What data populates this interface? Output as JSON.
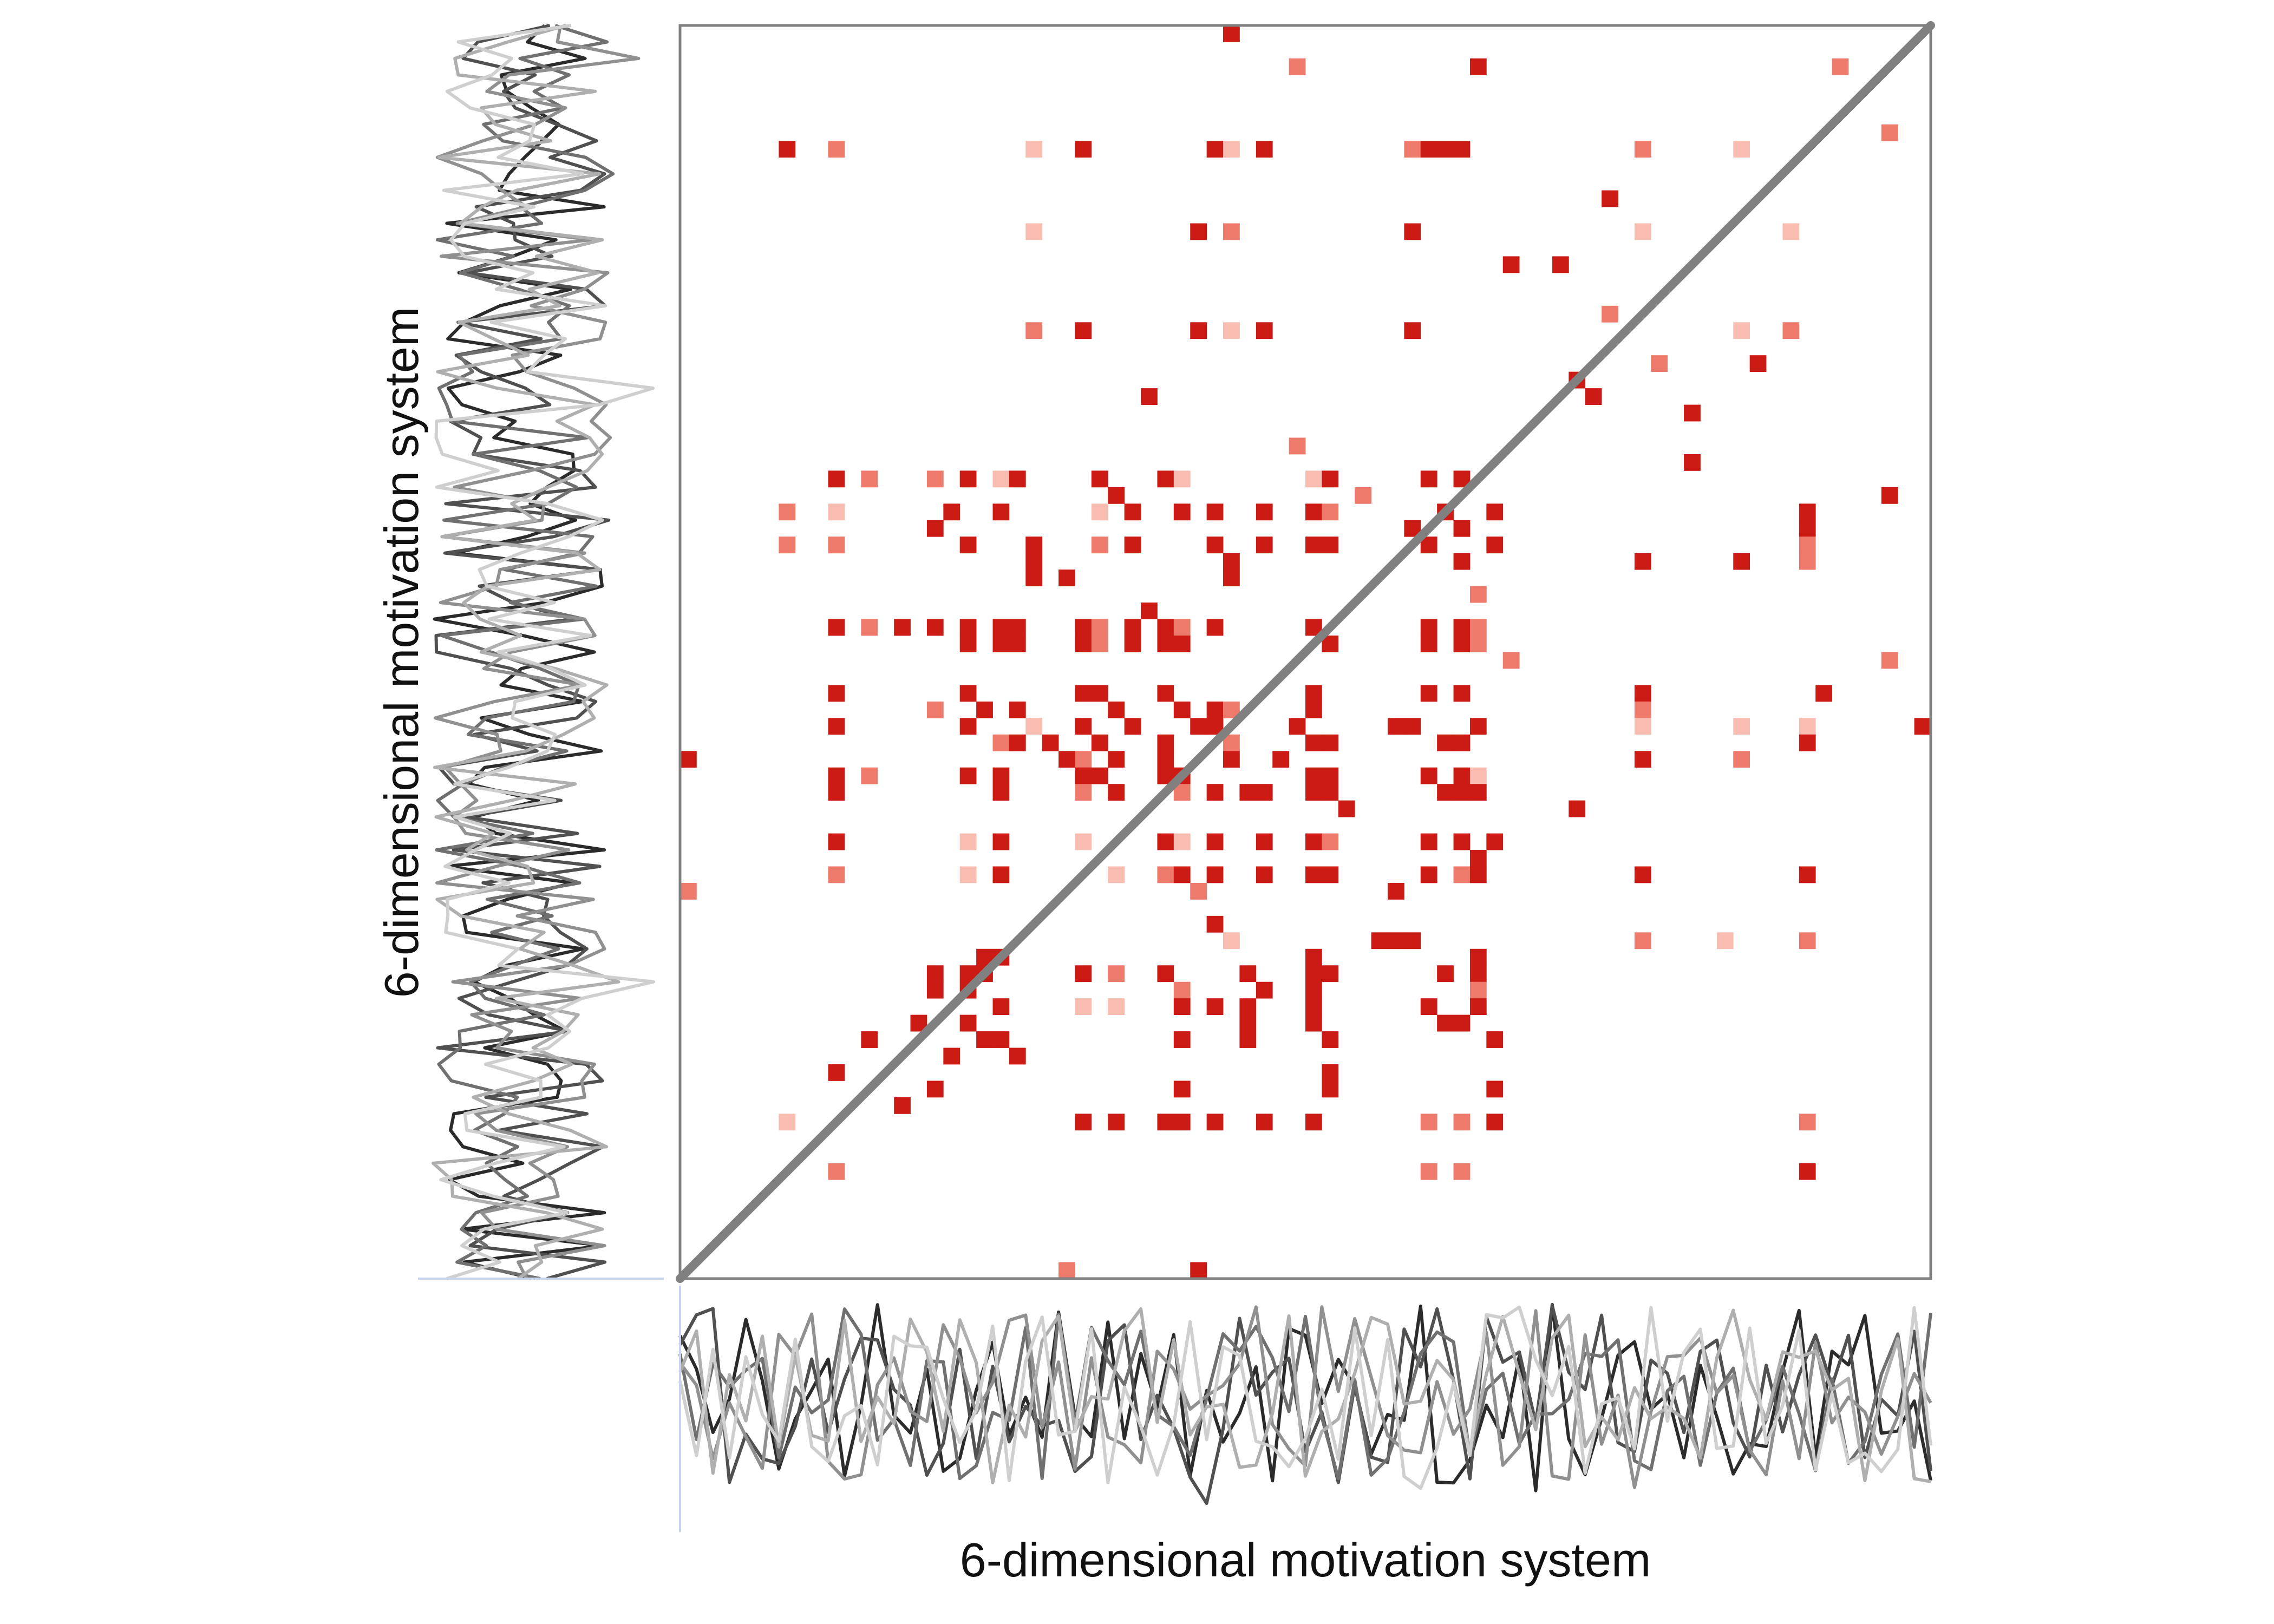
{
  "chart_data": {
    "type": "heatmap",
    "title": "",
    "xlabel": "6-dimensional motivation system",
    "ylabel": "6-dimensional motivation system",
    "grid": false,
    "legend": "none",
    "matrix_size": 76,
    "diagonal": "y = x reference line",
    "colors": {
      "dark": "#cc1a14",
      "medium": "#e0453a",
      "light": "#ee7a6c",
      "faint": "#f8bcb0",
      "diagonal": "#808080",
      "frame": "#808080"
    },
    "cells": [
      [
        33,
        0,
        "dark"
      ],
      [
        37,
        2,
        "light"
      ],
      [
        48,
        2,
        "dark"
      ],
      [
        70,
        2,
        "light"
      ],
      [
        6,
        7,
        "dark"
      ],
      [
        9,
        7,
        "light"
      ],
      [
        21,
        7,
        "faint"
      ],
      [
        24,
        7,
        "dark"
      ],
      [
        32,
        7,
        "dark"
      ],
      [
        33,
        7,
        "faint"
      ],
      [
        35,
        7,
        "dark"
      ],
      [
        44,
        7,
        "light"
      ],
      [
        45,
        7,
        "dark"
      ],
      [
        46,
        7,
        "dark"
      ],
      [
        47,
        7,
        "dark"
      ],
      [
        58,
        7,
        "light"
      ],
      [
        64,
        7,
        "faint"
      ],
      [
        73,
        6,
        "light"
      ],
      [
        56,
        10,
        "dark"
      ],
      [
        21,
        12,
        "faint"
      ],
      [
        31,
        12,
        "dark"
      ],
      [
        33,
        12,
        "light"
      ],
      [
        44,
        12,
        "dark"
      ],
      [
        58,
        12,
        "faint"
      ],
      [
        67,
        12,
        "faint"
      ],
      [
        50,
        14,
        "dark"
      ],
      [
        53,
        14,
        "dark"
      ],
      [
        56,
        17,
        "light"
      ],
      [
        21,
        18,
        "light"
      ],
      [
        24,
        18,
        "dark"
      ],
      [
        31,
        18,
        "dark"
      ],
      [
        33,
        18,
        "faint"
      ],
      [
        35,
        18,
        "dark"
      ],
      [
        44,
        18,
        "dark"
      ],
      [
        64,
        18,
        "faint"
      ],
      [
        67,
        18,
        "light"
      ],
      [
        59,
        20,
        "light"
      ],
      [
        65,
        20,
        "dark"
      ],
      [
        54,
        21,
        "dark"
      ],
      [
        55,
        22,
        "dark"
      ],
      [
        28,
        22,
        "dark"
      ],
      [
        61,
        23,
        "dark"
      ],
      [
        37,
        25,
        "light"
      ],
      [
        61,
        26,
        "dark"
      ],
      [
        9,
        27,
        "dark"
      ],
      [
        11,
        27,
        "light"
      ],
      [
        15,
        27,
        "light"
      ],
      [
        17,
        27,
        "dark"
      ],
      [
        19,
        27,
        "faint"
      ],
      [
        20,
        27,
        "dark"
      ],
      [
        25,
        27,
        "dark"
      ],
      [
        29,
        27,
        "dark"
      ],
      [
        30,
        27,
        "faint"
      ],
      [
        38,
        27,
        "faint"
      ],
      [
        39,
        27,
        "dark"
      ],
      [
        45,
        27,
        "dark"
      ],
      [
        47,
        27,
        "dark"
      ],
      [
        26,
        28,
        "dark"
      ],
      [
        41,
        28,
        "light"
      ],
      [
        73,
        28,
        "dark"
      ],
      [
        6,
        29,
        "light"
      ],
      [
        9,
        29,
        "faint"
      ],
      [
        16,
        29,
        "dark"
      ],
      [
        19,
        29,
        "dark"
      ],
      [
        25,
        29,
        "faint"
      ],
      [
        27,
        29,
        "dark"
      ],
      [
        30,
        29,
        "dark"
      ],
      [
        32,
        29,
        "dark"
      ],
      [
        35,
        29,
        "dark"
      ],
      [
        38,
        29,
        "dark"
      ],
      [
        39,
        29,
        "light"
      ],
      [
        46,
        29,
        "dark"
      ],
      [
        49,
        29,
        "dark"
      ],
      [
        68,
        29,
        "dark"
      ],
      [
        15,
        30,
        "dark"
      ],
      [
        44,
        30,
        "dark"
      ],
      [
        47,
        30,
        "dark"
      ],
      [
        68,
        30,
        "dark"
      ],
      [
        6,
        31,
        "light"
      ],
      [
        9,
        31,
        "light"
      ],
      [
        17,
        31,
        "dark"
      ],
      [
        21,
        31,
        "dark"
      ],
      [
        25,
        31,
        "light"
      ],
      [
        27,
        31,
        "dark"
      ],
      [
        32,
        31,
        "dark"
      ],
      [
        35,
        31,
        "dark"
      ],
      [
        38,
        31,
        "dark"
      ],
      [
        39,
        31,
        "dark"
      ],
      [
        45,
        31,
        "dark"
      ],
      [
        49,
        31,
        "dark"
      ],
      [
        68,
        31,
        "light"
      ],
      [
        21,
        32,
        "dark"
      ],
      [
        33,
        32,
        "dark"
      ],
      [
        47,
        32,
        "dark"
      ],
      [
        58,
        32,
        "dark"
      ],
      [
        64,
        32,
        "dark"
      ],
      [
        68,
        32,
        "light"
      ],
      [
        21,
        33,
        "dark"
      ],
      [
        23,
        33,
        "dark"
      ],
      [
        33,
        33,
        "dark"
      ],
      [
        48,
        34,
        "light"
      ],
      [
        28,
        35,
        "dark"
      ],
      [
        9,
        36,
        "dark"
      ],
      [
        11,
        36,
        "light"
      ],
      [
        13,
        36,
        "dark"
      ],
      [
        15,
        36,
        "dark"
      ],
      [
        17,
        36,
        "dark"
      ],
      [
        19,
        36,
        "dark"
      ],
      [
        20,
        36,
        "dark"
      ],
      [
        24,
        36,
        "dark"
      ],
      [
        25,
        36,
        "light"
      ],
      [
        27,
        36,
        "dark"
      ],
      [
        29,
        36,
        "dark"
      ],
      [
        30,
        36,
        "light"
      ],
      [
        32,
        36,
        "dark"
      ],
      [
        38,
        36,
        "dark"
      ],
      [
        45,
        36,
        "dark"
      ],
      [
        47,
        36,
        "dark"
      ],
      [
        48,
        36,
        "light"
      ],
      [
        17,
        37,
        "dark"
      ],
      [
        19,
        37,
        "dark"
      ],
      [
        20,
        37,
        "dark"
      ],
      [
        24,
        37,
        "dark"
      ],
      [
        25,
        37,
        "light"
      ],
      [
        27,
        37,
        "dark"
      ],
      [
        29,
        37,
        "dark"
      ],
      [
        30,
        37,
        "dark"
      ],
      [
        39,
        37,
        "dark"
      ],
      [
        45,
        37,
        "dark"
      ],
      [
        47,
        37,
        "dark"
      ],
      [
        48,
        37,
        "light"
      ],
      [
        50,
        38,
        "light"
      ],
      [
        73,
        38,
        "light"
      ],
      [
        9,
        40,
        "dark"
      ],
      [
        17,
        40,
        "dark"
      ],
      [
        24,
        40,
        "dark"
      ],
      [
        25,
        40,
        "dark"
      ],
      [
        29,
        40,
        "dark"
      ],
      [
        38,
        40,
        "dark"
      ],
      [
        45,
        40,
        "dark"
      ],
      [
        47,
        40,
        "dark"
      ],
      [
        58,
        40,
        "dark"
      ],
      [
        69,
        40,
        "dark"
      ],
      [
        15,
        41,
        "light"
      ],
      [
        18,
        41,
        "dark"
      ],
      [
        20,
        41,
        "dark"
      ],
      [
        26,
        41,
        "dark"
      ],
      [
        30,
        41,
        "dark"
      ],
      [
        32,
        41,
        "dark"
      ],
      [
        33,
        41,
        "light"
      ],
      [
        38,
        41,
        "dark"
      ],
      [
        58,
        41,
        "light"
      ],
      [
        9,
        42,
        "dark"
      ],
      [
        17,
        42,
        "dark"
      ],
      [
        21,
        42,
        "faint"
      ],
      [
        24,
        42,
        "dark"
      ],
      [
        27,
        42,
        "dark"
      ],
      [
        31,
        42,
        "dark"
      ],
      [
        32,
        42,
        "dark"
      ],
      [
        37,
        42,
        "dark"
      ],
      [
        43,
        42,
        "dark"
      ],
      [
        44,
        42,
        "dark"
      ],
      [
        48,
        42,
        "dark"
      ],
      [
        58,
        42,
        "faint"
      ],
      [
        64,
        42,
        "faint"
      ],
      [
        68,
        42,
        "faint"
      ],
      [
        75,
        42,
        "dark"
      ],
      [
        19,
        43,
        "light"
      ],
      [
        20,
        43,
        "dark"
      ],
      [
        22,
        43,
        "dark"
      ],
      [
        25,
        43,
        "dark"
      ],
      [
        29,
        43,
        "dark"
      ],
      [
        33,
        43,
        "light"
      ],
      [
        38,
        43,
        "dark"
      ],
      [
        39,
        43,
        "dark"
      ],
      [
        46,
        43,
        "dark"
      ],
      [
        47,
        43,
        "dark"
      ],
      [
        68,
        43,
        "dark"
      ],
      [
        0,
        44,
        "dark"
      ],
      [
        23,
        44,
        "dark"
      ],
      [
        24,
        44,
        "light"
      ],
      [
        26,
        44,
        "dark"
      ],
      [
        29,
        44,
        "dark"
      ],
      [
        33,
        44,
        "dark"
      ],
      [
        36,
        44,
        "dark"
      ],
      [
        58,
        44,
        "dark"
      ],
      [
        64,
        44,
        "light"
      ],
      [
        9,
        45,
        "dark"
      ],
      [
        11,
        45,
        "light"
      ],
      [
        17,
        45,
        "dark"
      ],
      [
        19,
        45,
        "dark"
      ],
      [
        24,
        45,
        "dark"
      ],
      [
        25,
        45,
        "dark"
      ],
      [
        29,
        45,
        "dark"
      ],
      [
        30,
        45,
        "dark"
      ],
      [
        38,
        45,
        "dark"
      ],
      [
        39,
        45,
        "dark"
      ],
      [
        45,
        45,
        "dark"
      ],
      [
        47,
        45,
        "dark"
      ],
      [
        48,
        45,
        "faint"
      ],
      [
        9,
        46,
        "dark"
      ],
      [
        19,
        46,
        "dark"
      ],
      [
        24,
        46,
        "light"
      ],
      [
        26,
        46,
        "dark"
      ],
      [
        30,
        46,
        "light"
      ],
      [
        32,
        46,
        "dark"
      ],
      [
        34,
        46,
        "dark"
      ],
      [
        35,
        46,
        "dark"
      ],
      [
        38,
        46,
        "dark"
      ],
      [
        39,
        46,
        "dark"
      ],
      [
        46,
        46,
        "dark"
      ],
      [
        47,
        46,
        "dark"
      ],
      [
        48,
        46,
        "dark"
      ],
      [
        40,
        47,
        "dark"
      ],
      [
        54,
        47,
        "dark"
      ],
      [
        9,
        49,
        "dark"
      ],
      [
        17,
        49,
        "faint"
      ],
      [
        19,
        49,
        "dark"
      ],
      [
        24,
        49,
        "faint"
      ],
      [
        29,
        49,
        "dark"
      ],
      [
        30,
        49,
        "faint"
      ],
      [
        32,
        49,
        "dark"
      ],
      [
        35,
        49,
        "dark"
      ],
      [
        38,
        49,
        "dark"
      ],
      [
        39,
        49,
        "light"
      ],
      [
        45,
        49,
        "dark"
      ],
      [
        47,
        49,
        "dark"
      ],
      [
        49,
        49,
        "dark"
      ],
      [
        48,
        50,
        "dark"
      ],
      [
        9,
        51,
        "light"
      ],
      [
        17,
        51,
        "faint"
      ],
      [
        19,
        51,
        "dark"
      ],
      [
        26,
        51,
        "faint"
      ],
      [
        29,
        51,
        "light"
      ],
      [
        30,
        51,
        "dark"
      ],
      [
        32,
        51,
        "dark"
      ],
      [
        35,
        51,
        "dark"
      ],
      [
        38,
        51,
        "dark"
      ],
      [
        39,
        51,
        "dark"
      ],
      [
        45,
        51,
        "dark"
      ],
      [
        47,
        51,
        "light"
      ],
      [
        48,
        51,
        "dark"
      ],
      [
        58,
        51,
        "dark"
      ],
      [
        68,
        51,
        "dark"
      ],
      [
        0,
        52,
        "light"
      ],
      [
        31,
        52,
        "light"
      ],
      [
        43,
        52,
        "dark"
      ],
      [
        32,
        54,
        "dark"
      ],
      [
        33,
        55,
        "faint"
      ],
      [
        42,
        55,
        "dark"
      ],
      [
        43,
        55,
        "dark"
      ],
      [
        44,
        55,
        "dark"
      ],
      [
        58,
        55,
        "light"
      ],
      [
        63,
        55,
        "faint"
      ],
      [
        68,
        55,
        "light"
      ],
      [
        18,
        56,
        "dark"
      ],
      [
        19,
        56,
        "dark"
      ],
      [
        38,
        56,
        "dark"
      ],
      [
        48,
        56,
        "dark"
      ],
      [
        15,
        57,
        "dark"
      ],
      [
        17,
        57,
        "dark"
      ],
      [
        18,
        57,
        "dark"
      ],
      [
        24,
        57,
        "dark"
      ],
      [
        26,
        57,
        "light"
      ],
      [
        29,
        57,
        "dark"
      ],
      [
        34,
        57,
        "dark"
      ],
      [
        38,
        57,
        "dark"
      ],
      [
        39,
        57,
        "dark"
      ],
      [
        46,
        57,
        "dark"
      ],
      [
        48,
        57,
        "dark"
      ],
      [
        15,
        58,
        "dark"
      ],
      [
        17,
        58,
        "dark"
      ],
      [
        30,
        58,
        "light"
      ],
      [
        35,
        58,
        "dark"
      ],
      [
        38,
        58,
        "dark"
      ],
      [
        48,
        58,
        "light"
      ],
      [
        19,
        59,
        "dark"
      ],
      [
        24,
        59,
        "faint"
      ],
      [
        26,
        59,
        "faint"
      ],
      [
        30,
        59,
        "dark"
      ],
      [
        32,
        59,
        "dark"
      ],
      [
        34,
        59,
        "dark"
      ],
      [
        38,
        59,
        "dark"
      ],
      [
        45,
        59,
        "dark"
      ],
      [
        48,
        59,
        "dark"
      ],
      [
        14,
        60,
        "dark"
      ],
      [
        17,
        60,
        "dark"
      ],
      [
        34,
        60,
        "dark"
      ],
      [
        38,
        60,
        "dark"
      ],
      [
        46,
        60,
        "dark"
      ],
      [
        47,
        60,
        "dark"
      ],
      [
        11,
        61,
        "dark"
      ],
      [
        18,
        61,
        "dark"
      ],
      [
        19,
        61,
        "dark"
      ],
      [
        30,
        61,
        "dark"
      ],
      [
        34,
        61,
        "dark"
      ],
      [
        39,
        61,
        "dark"
      ],
      [
        49,
        61,
        "dark"
      ],
      [
        16,
        62,
        "dark"
      ],
      [
        20,
        62,
        "dark"
      ],
      [
        9,
        63,
        "dark"
      ],
      [
        39,
        63,
        "dark"
      ],
      [
        15,
        64,
        "dark"
      ],
      [
        30,
        64,
        "dark"
      ],
      [
        39,
        64,
        "dark"
      ],
      [
        49,
        64,
        "dark"
      ],
      [
        13,
        65,
        "dark"
      ],
      [
        6,
        66,
        "faint"
      ],
      [
        24,
        66,
        "dark"
      ],
      [
        26,
        66,
        "dark"
      ],
      [
        29,
        66,
        "dark"
      ],
      [
        30,
        66,
        "dark"
      ],
      [
        32,
        66,
        "dark"
      ],
      [
        35,
        66,
        "dark"
      ],
      [
        38,
        66,
        "dark"
      ],
      [
        45,
        66,
        "light"
      ],
      [
        47,
        66,
        "light"
      ],
      [
        49,
        66,
        "dark"
      ],
      [
        68,
        66,
        "light"
      ],
      [
        9,
        69,
        "light"
      ],
      [
        45,
        69,
        "light"
      ],
      [
        47,
        69,
        "light"
      ],
      [
        68,
        69,
        "dark"
      ],
      [
        23,
        75,
        "light"
      ],
      [
        31,
        75,
        "dark"
      ]
    ],
    "marginal_series_count": 6,
    "marginal_series_colors": [
      "#2b2b2b",
      "#505050",
      "#707070",
      "#909090",
      "#afafaf",
      "#cfcfcf"
    ]
  }
}
